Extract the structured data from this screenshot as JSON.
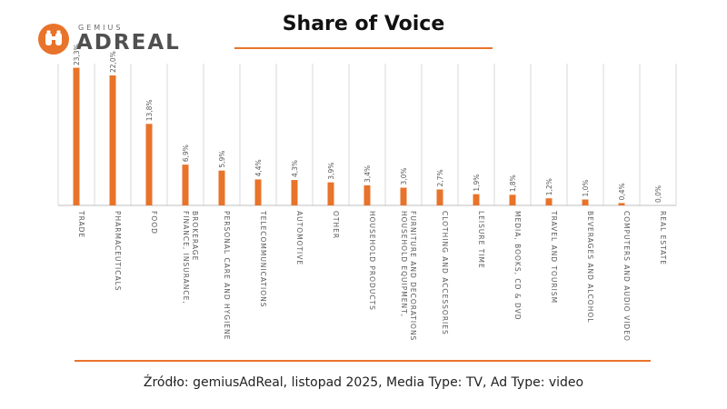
{
  "header": {
    "logo_sub": "GEMIUS",
    "logo_main": "ADREAL",
    "logo_icon": "binoculars-icon",
    "title": "Share of Voice"
  },
  "footer": {
    "source": "Źródło: gemiusAdReal, listopad 2025, Media Type: TV, Ad Type: video"
  },
  "colors": {
    "accent": "#E8732A",
    "grid": "#D9D9D9",
    "axis": "#BFBFBF",
    "label": "#595959"
  },
  "chart_data": {
    "type": "bar",
    "title": "Share of Voice",
    "xlabel": "",
    "ylabel": "",
    "ylim": [
      0,
      24
    ],
    "grid": "vertical",
    "legend": "none",
    "categories": [
      "TRADE",
      "PHARMACEUTICALS",
      "FOOD",
      "FINANCE, INSURANCE, BROKERAGE",
      "PERSONAL CARE AND HYGIENE",
      "TELECOMMUNICATIONS",
      "AUTOMOTIVE",
      "OTHER",
      "HOUSEHOLD PRODUCTS",
      "HOUSEHOLD EQUIPMENT, FURNITURE AND DECORATIONS",
      "CLOTHING AND ACCESSORIES",
      "LEISURE TIME",
      "MEDIA, BOOKS, CD & DVD",
      "TRAVEL AND TOURISM",
      "BEVERAGES AND ALCOHOL",
      "COMPUTERS AND AUDIO VIDEO",
      "REAL ESTATE"
    ],
    "label_lines": [
      [
        "TRADE"
      ],
      [
        "PHARMACEUTICALS"
      ],
      [
        "FOOD"
      ],
      [
        "FINANCE, INSURANCE,",
        "BROKERAGE"
      ],
      [
        "PERSONAL CARE AND HYGIENE"
      ],
      [
        "TELECOMMUNICATIONS"
      ],
      [
        "AUTOMOTIVE"
      ],
      [
        "OTHER"
      ],
      [
        "HOUSEHOLD PRODUCTS"
      ],
      [
        "HOUSEHOLD EQUIPMENT,",
        "FURNITURE AND DECORATIONS"
      ],
      [
        "CLOTHING AND ACCESSORIES"
      ],
      [
        "LEISURE TIME"
      ],
      [
        "MEDIA, BOOKS, CD & DVD"
      ],
      [
        "TRAVEL AND TOURISM"
      ],
      [
        "BEVERAGES AND ALCOHOL"
      ],
      [
        "COMPUTERS AND AUDIO VIDEO"
      ],
      [
        "REAL ESTATE"
      ]
    ],
    "values": [
      23.3,
      22.0,
      13.8,
      6.9,
      5.9,
      4.4,
      4.3,
      3.9,
      3.4,
      3.0,
      2.7,
      1.9,
      1.8,
      1.2,
      1.0,
      0.4,
      0.0
    ],
    "data_labels": [
      "23,3%",
      "22,0%",
      "13,8%",
      "6,9%",
      "5,9%",
      "4,4%",
      "4,3%",
      "3,9%",
      "3,4%",
      "3,0%",
      "2,7%",
      "1,9%",
      "1,8%",
      "1,2%",
      "1,0%",
      "0,4%",
      "0,0%"
    ]
  }
}
